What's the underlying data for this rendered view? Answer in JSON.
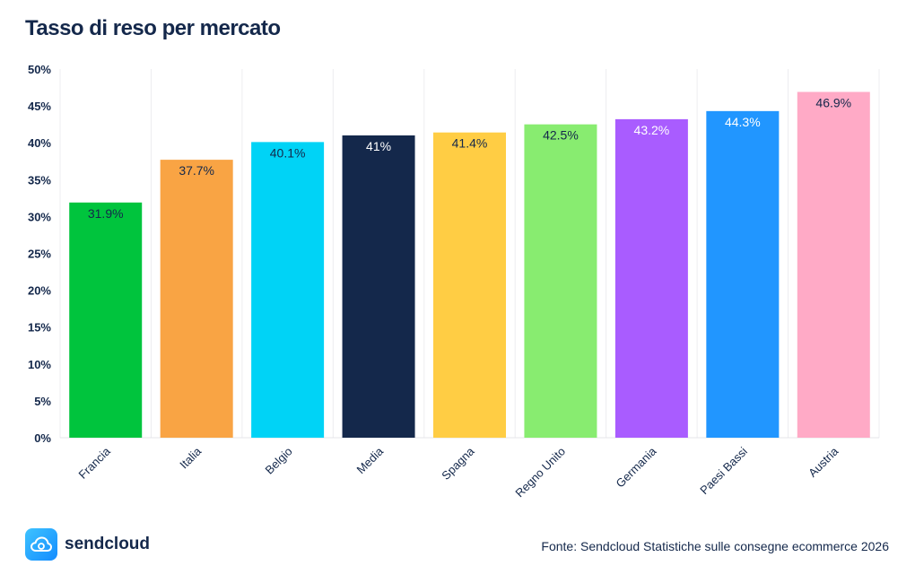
{
  "chart_data": {
    "type": "bar",
    "title": "Tasso di reso per mercato",
    "categories": [
      "Francia",
      "Italia",
      "Belgio",
      "Media",
      "Spagna",
      "Regno Unito",
      "Germania",
      "Paesi Bassi",
      "Austria"
    ],
    "values": [
      31.9,
      37.7,
      40.1,
      41,
      41.4,
      42.5,
      43.2,
      44.3,
      46.9
    ],
    "data_labels": [
      "31.9%",
      "37.7%",
      "40.1%",
      "41%",
      "41.4%",
      "42.5%",
      "43.2%",
      "44.3%",
      "46.9%"
    ],
    "bar_colors": [
      "#00c43d",
      "#f9a444",
      "#00d3f6",
      "#14284b",
      "#ffcd44",
      "#88ec70",
      "#a95cff",
      "#2196ff",
      "#ffaac6"
    ],
    "label_colors": [
      "#14284b",
      "#14284b",
      "#14284b",
      "#ffffff",
      "#14284b",
      "#14284b",
      "#ffffff",
      "#ffffff",
      "#14284b"
    ],
    "y_ticks": [
      "0%",
      "5%",
      "10%",
      "15%",
      "20%",
      "25%",
      "30%",
      "35%",
      "40%",
      "45%",
      "50%"
    ],
    "ylim": [
      0,
      50
    ],
    "xlabel": "",
    "ylabel": "",
    "grid": "vertical",
    "legend": "none"
  },
  "brand": {
    "name": "sendcloud",
    "icon": "cloud-icon",
    "accent": "#1d9bf0"
  },
  "source": "Fonte: Sendcloud Statistiche sulle consegne ecommerce 2026"
}
